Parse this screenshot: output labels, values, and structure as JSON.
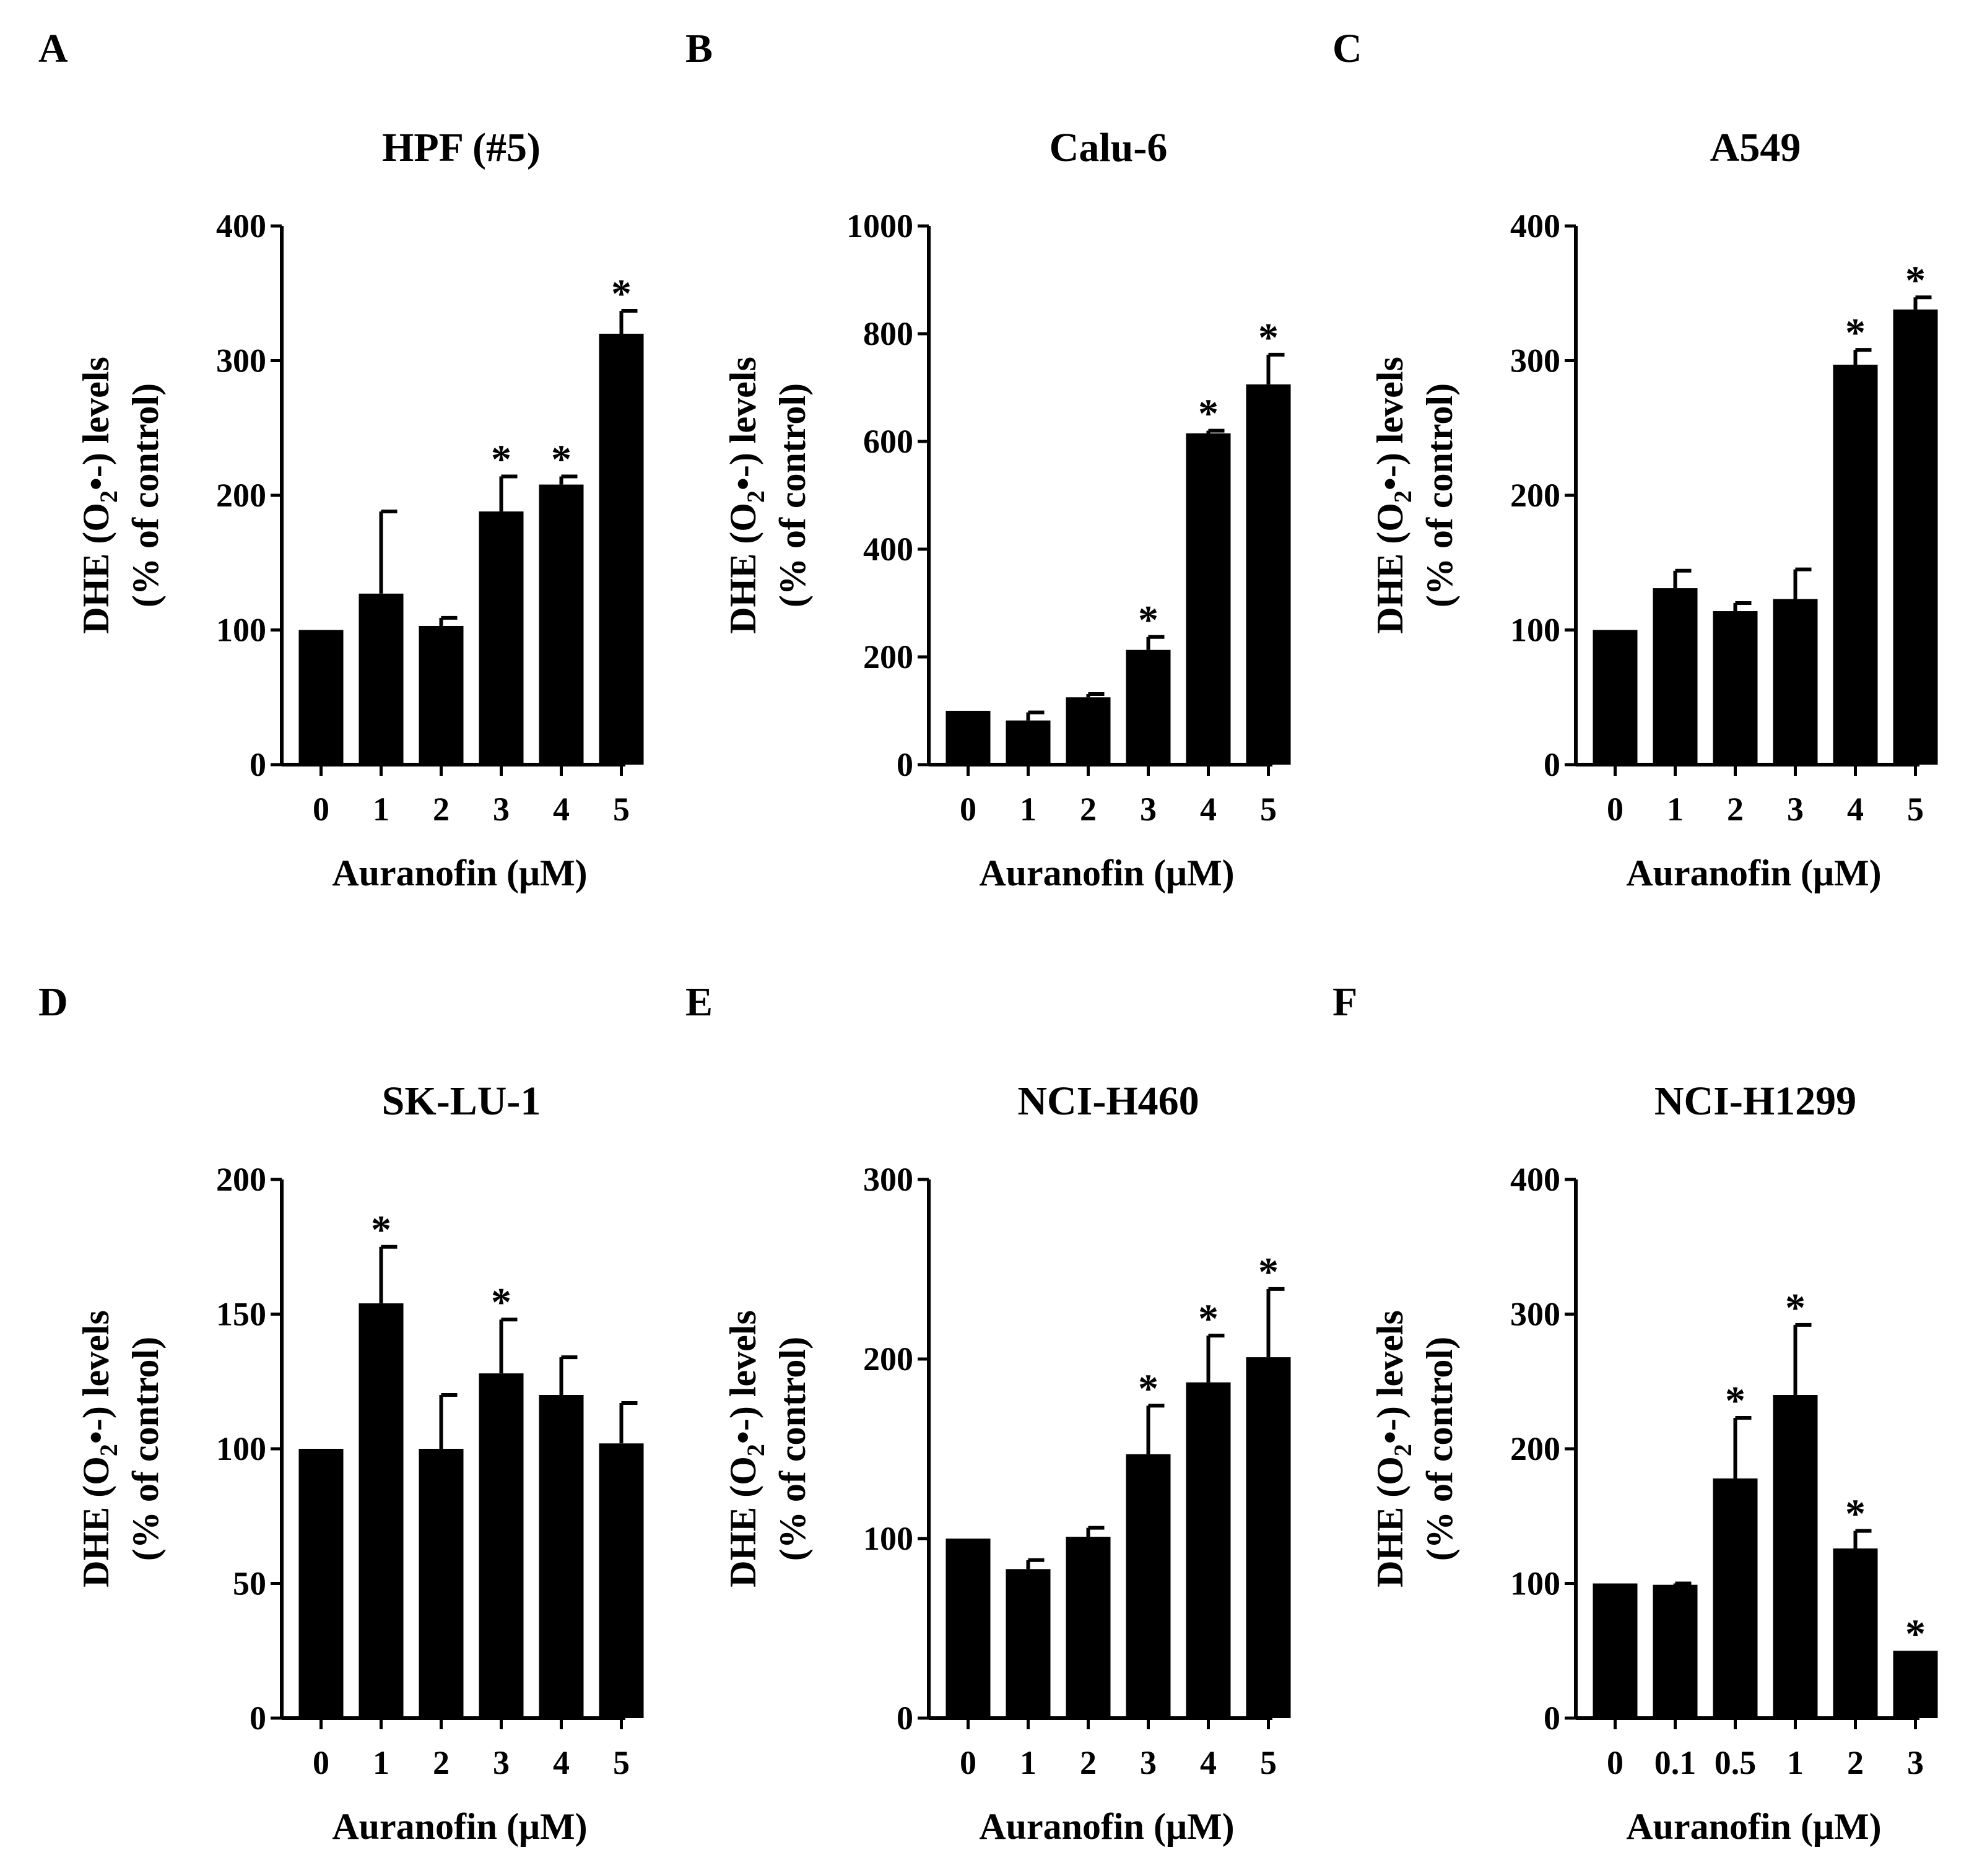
{
  "figure": {
    "ylabel_line1": "DHE (O",
    "ylabel_sub": "2",
    "ylabel_line1_end": "•-) levels",
    "ylabel_line2": "(% of control)",
    "xlabel": "Auranofin (μM)",
    "style": {
      "bar_color": "#000000",
      "background": "#ffffff"
    }
  },
  "chart_data": [
    {
      "type": "bar",
      "panel": "A",
      "title": "HPF (#5)",
      "xlabel": "Auranofin (μM)",
      "ylabel": "DHE (O2•-) levels (% of control)",
      "categories": [
        "0",
        "1",
        "2",
        "3",
        "4",
        "5"
      ],
      "values": [
        100,
        127,
        103,
        188,
        208,
        320
      ],
      "errors": [
        0,
        61,
        6,
        26,
        6,
        17
      ],
      "significant": [
        false,
        false,
        false,
        true,
        true,
        true
      ],
      "ylim": [
        0,
        400
      ],
      "yticks": [
        "0",
        "100",
        "200",
        "300",
        "400"
      ]
    },
    {
      "type": "bar",
      "panel": "B",
      "title": "Calu-6",
      "xlabel": "Auranofin (μM)",
      "ylabel": "DHE (O2•-) levels (% of control)",
      "categories": [
        "0",
        "1",
        "2",
        "3",
        "4",
        "5"
      ],
      "values": [
        100,
        82,
        125,
        213,
        615,
        706
      ],
      "errors": [
        0,
        15,
        6,
        24,
        5,
        55
      ],
      "significant": [
        false,
        false,
        false,
        true,
        true,
        true
      ],
      "ylim": [
        0,
        1000
      ],
      "yticks": [
        "0",
        "200",
        "400",
        "600",
        "800",
        "1000"
      ]
    },
    {
      "type": "bar",
      "panel": "C",
      "title": "A549",
      "xlabel": "Auranofin (μM)",
      "ylabel": "DHE (O2•-) levels (% of control)",
      "categories": [
        "0",
        "1",
        "2",
        "3",
        "4",
        "5"
      ],
      "values": [
        100,
        131,
        114,
        123,
        297,
        338
      ],
      "errors": [
        0,
        13,
        6,
        22,
        11,
        9
      ],
      "significant": [
        false,
        false,
        false,
        false,
        true,
        true
      ],
      "ylim": [
        0,
        400
      ],
      "yticks": [
        "0",
        "100",
        "200",
        "300",
        "400"
      ]
    },
    {
      "type": "bar",
      "panel": "D",
      "title": "SK-LU-1",
      "xlabel": "Auranofin (μM)",
      "ylabel": "DHE (O2•-) levels (% of control)",
      "categories": [
        "0",
        "1",
        "2",
        "3",
        "4",
        "5"
      ],
      "values": [
        100,
        154,
        100,
        128,
        120,
        102
      ],
      "errors": [
        0,
        21,
        20,
        20,
        14,
        15
      ],
      "significant": [
        false,
        true,
        false,
        true,
        false,
        false
      ],
      "ylim": [
        0,
        200
      ],
      "yticks": [
        "0",
        "50",
        "100",
        "150",
        "200"
      ]
    },
    {
      "type": "bar",
      "panel": "E",
      "title": "NCI-H460",
      "xlabel": "Auranofin (μM)",
      "ylabel": "DHE (O2•-) levels (% of control)",
      "categories": [
        "0",
        "1",
        "2",
        "3",
        "4",
        "5"
      ],
      "values": [
        100,
        83,
        101,
        147,
        187,
        201
      ],
      "errors": [
        0,
        5,
        5,
        27,
        26,
        38
      ],
      "significant": [
        false,
        false,
        false,
        true,
        true,
        true
      ],
      "ylim": [
        0,
        300
      ],
      "yticks": [
        "0",
        "100",
        "200",
        "300"
      ]
    },
    {
      "type": "bar",
      "panel": "F",
      "title": "NCI-H1299",
      "xlabel": "Auranofin (μM)",
      "ylabel": "DHE (O2•-) levels (% of control)",
      "categories": [
        "0",
        "0.1",
        "0.5",
        "1",
        "2",
        "3"
      ],
      "values": [
        100,
        99,
        178,
        240,
        126,
        50
      ],
      "errors": [
        0,
        1,
        45,
        52,
        13,
        0
      ],
      "significant": [
        false,
        false,
        true,
        true,
        true,
        true
      ],
      "ylim": [
        0,
        400
      ],
      "yticks": [
        "0",
        "100",
        "200",
        "300",
        "400"
      ]
    }
  ]
}
